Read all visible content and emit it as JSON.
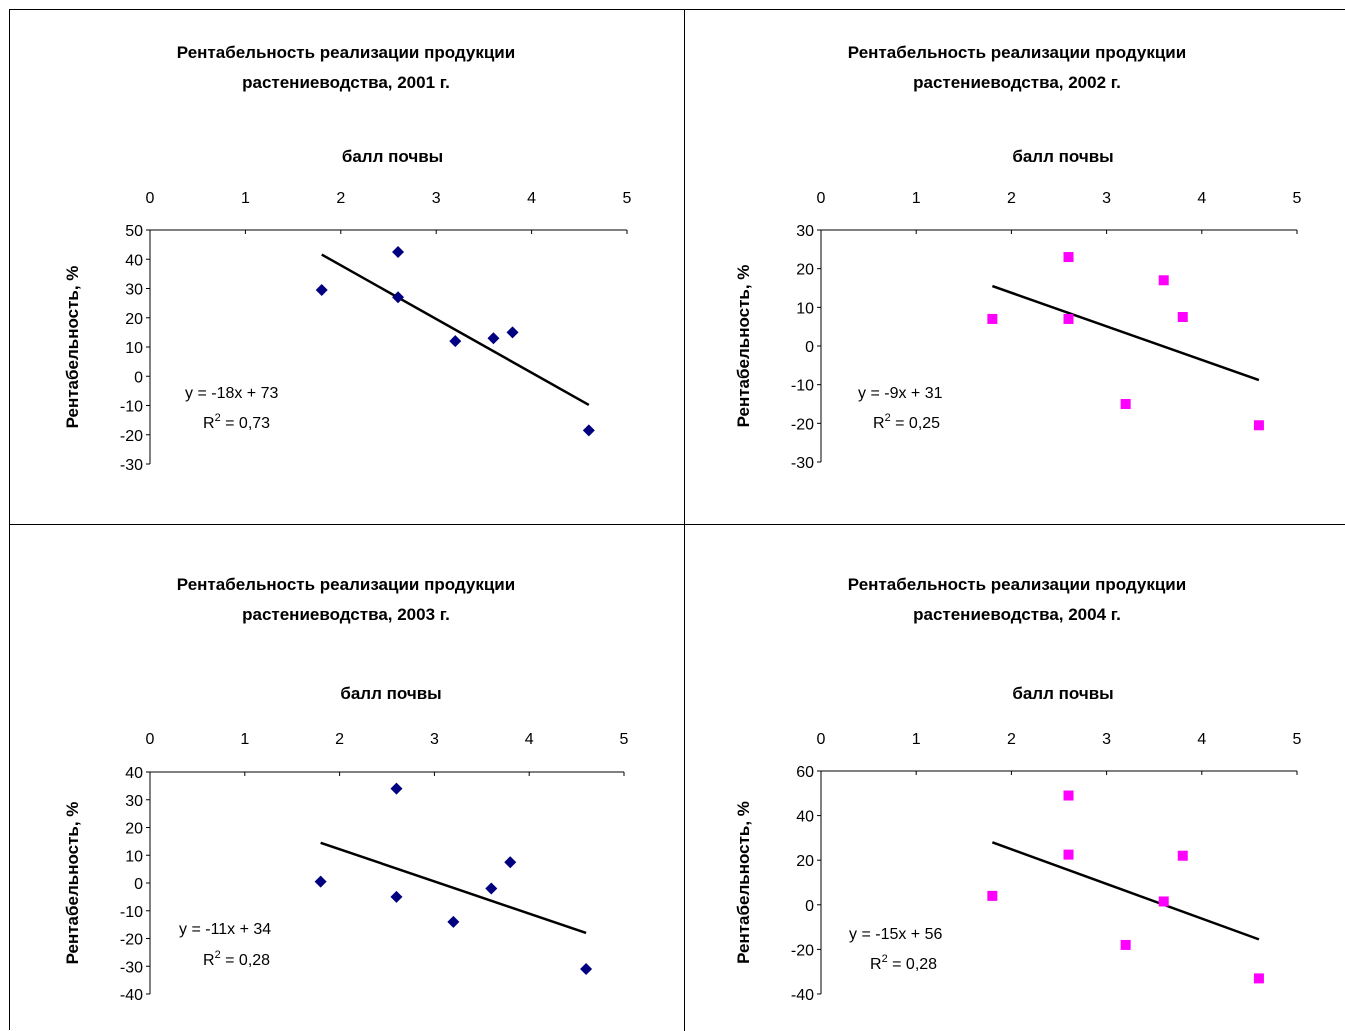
{
  "chart_data": [
    {
      "type": "scatter",
      "title": [
        "Рентабельность реализации продукции",
        "растениеводства, 2001 г."
      ],
      "xlabel": "балл почвы",
      "ylabel": "Рентабельность, %",
      "xlim": [
        0,
        5
      ],
      "ylim": [
        -30,
        50
      ],
      "xticks": [
        "0",
        "1",
        "2",
        "3",
        "4",
        "5"
      ],
      "yticks": [
        "50",
        "40",
        "30",
        "20",
        "10",
        "0",
        "-10",
        "-20",
        "-30"
      ],
      "marker": "diamond",
      "marker_color": "#000080",
      "points": [
        {
          "x": 1.8,
          "y": 29.5
        },
        {
          "x": 2.6,
          "y": 42.5
        },
        {
          "x": 2.6,
          "y": 27
        },
        {
          "x": 3.2,
          "y": 12
        },
        {
          "x": 3.6,
          "y": 13
        },
        {
          "x": 3.8,
          "y": 15
        },
        {
          "x": 4.6,
          "y": -18.5
        }
      ],
      "trendline": {
        "x": [
          1.8,
          4.6
        ],
        "y": [
          41.6,
          -9.8
        ]
      },
      "equation": "y = -18x + 73",
      "r2_prefix": "R",
      "r2_sup": "2",
      "r2_value": " = 0,73"
    },
    {
      "type": "scatter",
      "title": [
        "Рентабельность реализации продукции",
        "растениеводства, 2002 г."
      ],
      "xlabel": "балл почвы",
      "ylabel": "Рентабельность, %",
      "xlim": [
        0,
        5
      ],
      "ylim": [
        -30,
        30
      ],
      "xticks": [
        "0",
        "1",
        "2",
        "3",
        "4",
        "5"
      ],
      "yticks": [
        "30",
        "20",
        "10",
        "0",
        "-10",
        "-20",
        "-30"
      ],
      "marker": "square",
      "marker_color": "#ff00ff",
      "points": [
        {
          "x": 1.8,
          "y": 7
        },
        {
          "x": 2.6,
          "y": 23
        },
        {
          "x": 2.6,
          "y": 7
        },
        {
          "x": 3.2,
          "y": -15
        },
        {
          "x": 3.6,
          "y": 17
        },
        {
          "x": 3.8,
          "y": 7.5
        },
        {
          "x": 4.6,
          "y": -20.5
        }
      ],
      "trendline": {
        "x": [
          1.8,
          4.6
        ],
        "y": [
          15.5,
          -8.8
        ]
      },
      "equation": "y = -9x + 31",
      "r2_prefix": "R",
      "r2_sup": "2",
      "r2_value": " = 0,25"
    },
    {
      "type": "scatter",
      "title": [
        "Рентабельность реализации продукции",
        "растениеводства, 2003 г."
      ],
      "xlabel": "балл почвы",
      "ylabel": "Рентабельность, %",
      "xlim": [
        0,
        5
      ],
      "ylim": [
        -40,
        40
      ],
      "xticks": [
        "0",
        "1",
        "2",
        "3",
        "4",
        "5"
      ],
      "yticks": [
        "40",
        "30",
        "20",
        "10",
        "0",
        "-10",
        "-20",
        "-30",
        "-40"
      ],
      "marker": "diamond",
      "marker_color": "#000080",
      "points": [
        {
          "x": 1.8,
          "y": 0.5
        },
        {
          "x": 2.6,
          "y": 34
        },
        {
          "x": 2.6,
          "y": -5
        },
        {
          "x": 3.2,
          "y": -14
        },
        {
          "x": 3.6,
          "y": -2
        },
        {
          "x": 3.8,
          "y": 7.5
        },
        {
          "x": 4.6,
          "y": -31
        }
      ],
      "trendline": {
        "x": [
          1.8,
          4.6
        ],
        "y": [
          14.5,
          -18
        ]
      },
      "equation": "y = -11x + 34",
      "r2_prefix": "R",
      "r2_sup": "2",
      "r2_value": " = 0,28"
    },
    {
      "type": "scatter",
      "title": [
        "Рентабельность реализации  продукции",
        "растениеводства, 2004 г."
      ],
      "xlabel": "балл почвы",
      "ylabel": "Рентабельность, %",
      "xlim": [
        0,
        5
      ],
      "ylim": [
        -40,
        60
      ],
      "xticks": [
        "0",
        "1",
        "2",
        "3",
        "4",
        "5"
      ],
      "yticks": [
        "60",
        "40",
        "20",
        "0",
        "-20",
        "-40"
      ],
      "marker": "square",
      "marker_color": "#ff00ff",
      "points": [
        {
          "x": 1.8,
          "y": 4
        },
        {
          "x": 2.6,
          "y": 49
        },
        {
          "x": 2.6,
          "y": 22.5
        },
        {
          "x": 3.2,
          "y": -18
        },
        {
          "x": 3.6,
          "y": 1.5
        },
        {
          "x": 3.8,
          "y": 22
        },
        {
          "x": 4.6,
          "y": -33
        }
      ],
      "trendline": {
        "x": [
          1.8,
          4.6
        ],
        "y": [
          28,
          -15.5
        ]
      },
      "equation": "y = -15x + 56",
      "r2_prefix": "R",
      "r2_sup": "2",
      "r2_value": " = 0,28"
    }
  ]
}
